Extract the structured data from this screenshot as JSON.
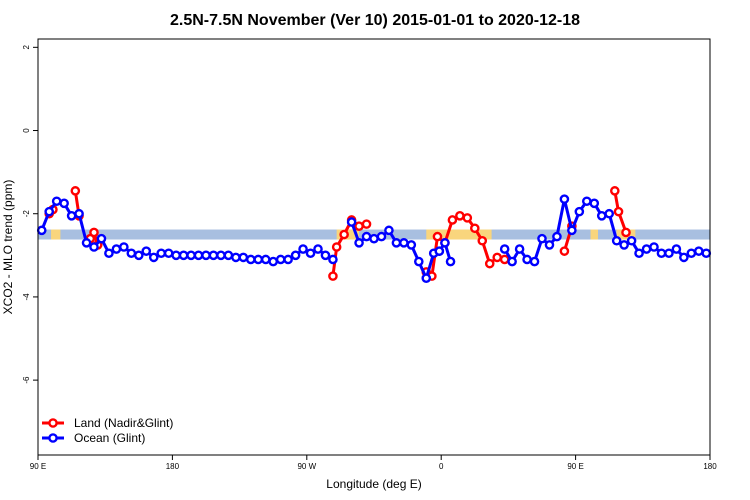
{
  "chart_data": {
    "type": "line",
    "title": "2.5N-7.5N November (Ver 10)   2015-01-01 to 2020-12-18",
    "xlabel": "Longitude (deg E)",
    "ylabel": "XCO2 - MLO trend (ppm)",
    "xlim": [
      90,
      450
    ],
    "ylim": [
      -7.8,
      2.2
    ],
    "x_ticks": [
      {
        "value": 90,
        "label": "90 E"
      },
      {
        "value": 162,
        "label": "180"
      },
      {
        "value": 234,
        "label": "90 W"
      },
      {
        "value": 306,
        "label": "0"
      },
      {
        "value": 378,
        "label": "90 E"
      },
      {
        "value": 450,
        "label": "180"
      }
    ],
    "y_ticks": [
      {
        "value": 2,
        "label": "2"
      },
      {
        "value": 0,
        "label": "0"
      },
      {
        "value": -2,
        "label": "-2"
      },
      {
        "value": -4,
        "label": "-4"
      },
      {
        "value": -6,
        "label": "-6"
      }
    ],
    "band": {
      "y_low": -2.62,
      "y_high": -2.38,
      "color": "#a8bfe0"
    },
    "land_band_segments": [
      [
        97,
        102
      ],
      [
        250,
        262
      ],
      [
        298,
        333
      ],
      [
        386,
        390
      ],
      [
        400,
        410
      ]
    ],
    "land_band_color": "#f9d57d",
    "legend": {
      "position": "bottom-left"
    },
    "series": [
      {
        "name": "Land (Nadir&Glint)",
        "color": "#ff0000",
        "segments": [
          {
            "x": [
              96,
              98
            ],
            "y": [
              -2.0,
              -1.9
            ]
          },
          {
            "x": [
              110,
              112
            ],
            "y": [
              -1.45,
              -2.05
            ]
          },
          {
            "x": [
              118,
              120,
              122
            ],
            "y": [
              -2.6,
              -2.45,
              -2.75
            ]
          },
          {
            "x": [
              248,
              250,
              254,
              258,
              262,
              266
            ],
            "y": [
              -3.5,
              -2.8,
              -2.5,
              -2.15,
              -2.3,
              -2.25
            ]
          },
          {
            "x": [
              298,
              301,
              304,
              308,
              312,
              316,
              320,
              324,
              328,
              332,
              336,
              340
            ],
            "y": [
              -3.4,
              -3.5,
              -2.55,
              -2.7,
              -2.15,
              -2.05,
              -2.1,
              -2.35,
              -2.65,
              -3.2,
              -3.05,
              -3.1
            ]
          },
          {
            "x": [
              372,
              376
            ],
            "y": [
              -2.9,
              -2.3
            ]
          },
          {
            "x": [
              399,
              401,
              405
            ],
            "y": [
              -1.45,
              -1.95,
              -2.45
            ]
          }
        ]
      },
      {
        "name": "Ocean (Glint)",
        "color": "#0000ff",
        "segments": [
          {
            "x": [
              92,
              96,
              100,
              104,
              108,
              112,
              116,
              120,
              124,
              128,
              132,
              136,
              140,
              144,
              148,
              152,
              156,
              160,
              164,
              168,
              172,
              176,
              180,
              184,
              188,
              192,
              196,
              200,
              204,
              208,
              212,
              216,
              220,
              224,
              228,
              232,
              236,
              240,
              244,
              248
            ],
            "y": [
              -2.4,
              -1.95,
              -1.7,
              -1.75,
              -2.05,
              -2.0,
              -2.7,
              -2.8,
              -2.6,
              -2.95,
              -2.85,
              -2.8,
              -2.95,
              -3.0,
              -2.9,
              -3.05,
              -2.95,
              -2.95,
              -3.0,
              -3.0,
              -3.0,
              -3.0,
              -3.0,
              -3.0,
              -3.0,
              -3.0,
              -3.05,
              -3.05,
              -3.1,
              -3.1,
              -3.1,
              -3.15,
              -3.1,
              -3.1,
              -3.0,
              -2.85,
              -2.95,
              -2.85,
              -3.0,
              -3.1
            ]
          },
          {
            "x": [
              258,
              262,
              266,
              270,
              274,
              278,
              282,
              286,
              290,
              294,
              298,
              302,
              305
            ],
            "y": [
              -2.2,
              -2.7,
              -2.55,
              -2.6,
              -2.55,
              -2.4,
              -2.7,
              -2.7,
              -2.75,
              -3.15,
              -3.55,
              -2.95,
              -2.9
            ]
          },
          {
            "x": [
              305,
              308,
              311
            ],
            "y": [
              -2.9,
              -2.7,
              -3.15
            ]
          },
          {
            "x": [
              340,
              344,
              348,
              352,
              356,
              360,
              364,
              368,
              372,
              376,
              380,
              384,
              388,
              392,
              396,
              400,
              404,
              408,
              412,
              416,
              420,
              424,
              428,
              432,
              436,
              440,
              444,
              448
            ],
            "y": [
              -2.85,
              -3.15,
              -2.85,
              -3.1,
              -3.15,
              -2.6,
              -2.75,
              -2.55,
              -1.65,
              -2.4,
              -1.95,
              -1.7,
              -1.75,
              -2.05,
              -2.0,
              -2.65,
              -2.75,
              -2.65,
              -2.95,
              -2.85,
              -2.8,
              -2.95,
              -2.95,
              -2.85,
              -3.05,
              -2.95,
              -2.9,
              -2.95
            ]
          }
        ]
      }
    ]
  }
}
